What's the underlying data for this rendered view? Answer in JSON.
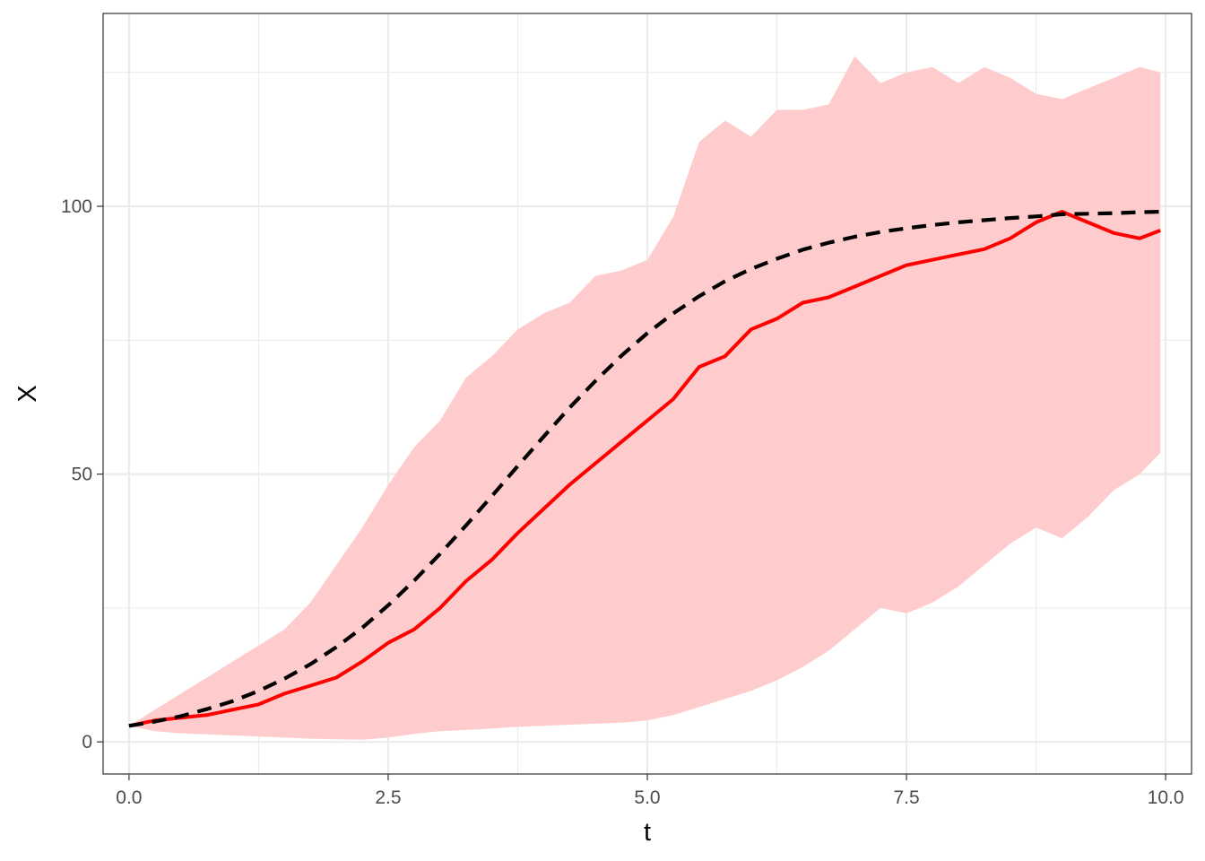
{
  "chart_data": {
    "type": "line",
    "title": "",
    "xlabel": "t",
    "ylabel": "X",
    "xlim": [
      -0.25,
      10.25
    ],
    "ylim": [
      -6,
      136
    ],
    "x_ticks": [
      0.0,
      2.5,
      5.0,
      7.5,
      10.0
    ],
    "x_tick_labels": [
      "0.0",
      "2.5",
      "5.0",
      "7.5",
      "10.0"
    ],
    "y_ticks": [
      0,
      50,
      100
    ],
    "y_tick_labels": [
      "0",
      "50",
      "100"
    ],
    "grid": true,
    "legend": "none",
    "colors": {
      "band": "#ffcccd",
      "mean_line": "#ff0000",
      "reference_line": "#000000",
      "grid": "#ebebeb",
      "panel_border": "#333333"
    },
    "ribbon": {
      "x": [
        0,
        0.25,
        0.5,
        0.75,
        1.0,
        1.25,
        1.5,
        1.75,
        2.0,
        2.25,
        2.5,
        2.75,
        3.0,
        3.25,
        3.5,
        3.75,
        4.0,
        4.25,
        4.5,
        4.75,
        5.0,
        5.25,
        5.5,
        5.75,
        6.0,
        6.25,
        6.5,
        6.75,
        7.0,
        7.25,
        7.5,
        7.75,
        8.0,
        8.25,
        8.5,
        8.75,
        9.0,
        9.25,
        9.5,
        9.75,
        9.95
      ],
      "upper": [
        3,
        6,
        9,
        12,
        15,
        18,
        21,
        26,
        33,
        40,
        48,
        55,
        60,
        68,
        72,
        77,
        80,
        82,
        87,
        88,
        90,
        98,
        112,
        116,
        113,
        118,
        118,
        119,
        128,
        123,
        125,
        126,
        123,
        126,
        124,
        121,
        120,
        122,
        124,
        126,
        125
      ],
      "lower": [
        3,
        2,
        1.6,
        1.4,
        1.2,
        1,
        0.8,
        0.6,
        0.5,
        0.4,
        0.8,
        1.5,
        2,
        2.2,
        2.5,
        2.8,
        3,
        3.2,
        3.4,
        3.6,
        4,
        5,
        6.5,
        8,
        9.5,
        11.5,
        14,
        17,
        21,
        25,
        24,
        26,
        29,
        33,
        37,
        40,
        38,
        42,
        47,
        50,
        54
      ]
    },
    "series": [
      {
        "x": [
          0,
          0.25,
          0.5,
          0.75,
          1.0,
          1.25,
          1.5,
          1.75,
          2.0,
          2.25,
          2.5,
          2.75,
          3.0,
          3.25,
          3.5,
          3.75,
          4.0,
          4.25,
          4.5,
          4.75,
          5.0,
          5.25,
          5.5,
          5.75,
          6.0,
          6.25,
          6.5,
          6.75,
          7.0,
          7.25,
          7.5,
          7.75,
          8.0,
          8.25,
          8.5,
          8.75,
          9.0,
          9.25,
          9.5,
          9.75,
          9.95
        ],
        "values": [
          3,
          4,
          4.5,
          5,
          6,
          7,
          9,
          10.5,
          12,
          15,
          18.5,
          21,
          25,
          30,
          34,
          39,
          43.5,
          48,
          52,
          56,
          60,
          64,
          70,
          72,
          77,
          79,
          82,
          83,
          85,
          87,
          89,
          90,
          91,
          92,
          94,
          97,
          99,
          97,
          95,
          94,
          95.5
        ]
      },
      {
        "x": [
          0,
          0.25,
          0.5,
          0.75,
          1.0,
          1.25,
          1.5,
          1.75,
          2.0,
          2.25,
          2.5,
          2.75,
          3.0,
          3.25,
          3.5,
          3.75,
          4.0,
          4.25,
          4.5,
          4.75,
          5.0,
          5.25,
          5.5,
          5.75,
          6.0,
          6.25,
          6.5,
          6.75,
          7.0,
          7.25,
          7.5,
          7.75,
          8.0,
          8.25,
          8.5,
          8.75,
          9.0,
          9.25,
          9.5,
          9.75,
          10.0
        ],
        "values": [
          3,
          3.8,
          4.8,
          6.1,
          7.6,
          9.5,
          11.8,
          14.5,
          17.7,
          21.3,
          25.5,
          30.1,
          35.1,
          40.4,
          45.9,
          51.5,
          57,
          62.4,
          67.4,
          72.1,
          76.3,
          80,
          83.2,
          86,
          88.3,
          90.2,
          91.9,
          93.2,
          94.3,
          95.2,
          95.9,
          96.5,
          97,
          97.4,
          97.8,
          98.1,
          98.5,
          98.6,
          98.7,
          98.9,
          99
        ]
      }
    ]
  }
}
